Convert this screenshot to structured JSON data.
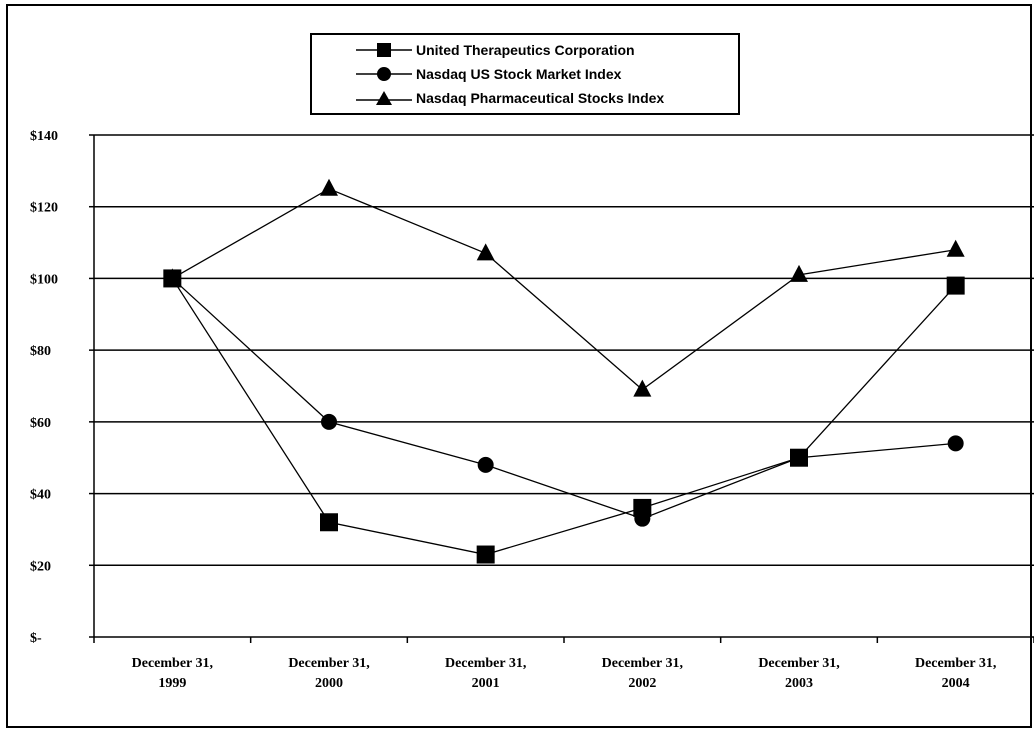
{
  "chart_data": {
    "type": "line",
    "title": "",
    "xlabel": "",
    "ylabel": "",
    "categories": [
      [
        "December 31,",
        "1999"
      ],
      [
        "December 31,",
        "2000"
      ],
      [
        "December 31,",
        "2001"
      ],
      [
        "December 31,",
        "2002"
      ],
      [
        "December 31,",
        "2003"
      ],
      [
        "December 31,",
        "2004"
      ]
    ],
    "ylim": [
      0,
      140
    ],
    "yticks": [
      0,
      20,
      40,
      60,
      80,
      100,
      120,
      140
    ],
    "ytick_labels": [
      "$-",
      "$20",
      "$40",
      "$60",
      "$80",
      "$100",
      "$120",
      "$140"
    ],
    "grid": true,
    "legend_position": "top-center",
    "series": [
      {
        "name": "United Therapeutics Corporation",
        "marker": "square",
        "values": [
          100,
          32,
          23,
          36,
          50,
          98
        ]
      },
      {
        "name": "Nasdaq US Stock Market Index",
        "marker": "circle",
        "values": [
          100,
          60,
          48,
          33,
          50,
          54
        ]
      },
      {
        "name": "Nasdaq Pharmaceutical Stocks Index",
        "marker": "triangle",
        "values": [
          100,
          125,
          107,
          69,
          101,
          108
        ]
      }
    ],
    "colors": {
      "line": "#000000",
      "grid": "#000000",
      "background": "#ffffff"
    }
  }
}
